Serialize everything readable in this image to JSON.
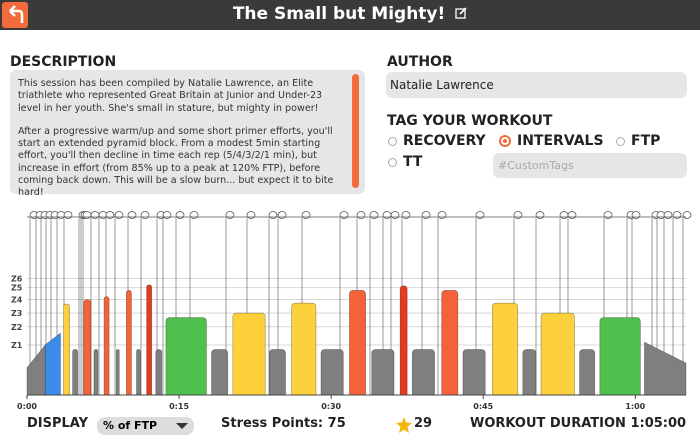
{
  "header": {
    "title": "The Small but Mighty!"
  },
  "description": {
    "label": "DESCRIPTION",
    "paragraphs": [
      "This session has been compiled by Natalie Lawrence, an Elite triathlete who represented Great Britain at Junior and Under-23 level in her youth. She's small in stature, but mighty in power!",
      "After a progressive warm/up and some short primer efforts, you'll start an extended pyramid block. From a modest 5min starting effort, you'll then decline in time each rep (5/4/3/2/1 min), but increase in effort (from 85% up to a peak at 120% FTP), before coming back down. This will be a slow burn... but expect it to bite hard!"
    ]
  },
  "author": {
    "label": "AUTHOR",
    "value": "Natalie Lawrence"
  },
  "tags": {
    "label": "TAG YOUR WORKOUT",
    "options": [
      {
        "label": "RECOVERY",
        "checked": false
      },
      {
        "label": "INTERVALS",
        "checked": true
      },
      {
        "label": "FTP",
        "checked": false
      },
      {
        "label": "TT",
        "checked": false
      }
    ],
    "custom_placeholder": "#CustomTags"
  },
  "workout": {
    "xlim": [
      0,
      65
    ],
    "ylim": [
      0,
      200
    ],
    "xticks": [
      {
        "value": 0,
        "label": "0:00"
      },
      {
        "value": 15,
        "label": "0:15"
      },
      {
        "value": 30,
        "label": "0:30"
      },
      {
        "value": 45,
        "label": "0:45"
      },
      {
        "value": 60,
        "label": "1:00"
      }
    ],
    "zones": [
      {
        "value": 55,
        "label": "Z1"
      },
      {
        "value": 75,
        "label": "Z2"
      },
      {
        "value": 90,
        "label": "Z3"
      },
      {
        "value": 105,
        "label": "Z4"
      },
      {
        "value": 118,
        "label": "Z5"
      },
      {
        "value": 128,
        "label": "Z6"
      }
    ],
    "blocks": [
      {
        "start": 0,
        "end": 1.8,
        "power": [
          30,
          55
        ],
        "color": "#7f7f7f"
      },
      {
        "start": 1.8,
        "end": 3.3,
        "power": [
          55,
          68
        ],
        "color": "#3b8bea"
      },
      {
        "start": 3.6,
        "end": 4.2,
        "power": [
          100
        ],
        "color": "#fdd13b"
      },
      {
        "start": 4.5,
        "end": 5.0,
        "power": [
          50
        ],
        "color": "#7f7f7f"
      },
      {
        "start": 5.6,
        "end": 6.3,
        "power": [
          105
        ],
        "color": "#f5623a"
      },
      {
        "start": 6.6,
        "end": 7.0,
        "power": [
          50
        ],
        "color": "#7f7f7f"
      },
      {
        "start": 7.6,
        "end": 8.1,
        "power": [
          108
        ],
        "color": "#f5623a"
      },
      {
        "start": 8.8,
        "end": 9.1,
        "power": [
          50
        ],
        "color": "#7f7f7f"
      },
      {
        "start": 9.8,
        "end": 10.3,
        "power": [
          115
        ],
        "color": "#f5623a"
      },
      {
        "start": 10.8,
        "end": 11.2,
        "power": [
          50
        ],
        "color": "#7f7f7f"
      },
      {
        "start": 11.8,
        "end": 12.3,
        "power": [
          121
        ],
        "color": "#e53a1e"
      },
      {
        "start": 12.7,
        "end": 13.3,
        "power": [
          50
        ],
        "color": "#7f7f7f"
      },
      {
        "start": 13.7,
        "end": 17.7,
        "power": [
          85
        ],
        "color": "#4fbf4e"
      },
      {
        "start": 18.2,
        "end": 19.8,
        "power": [
          50
        ],
        "color": "#7f7f7f"
      },
      {
        "start": 20.3,
        "end": 23.5,
        "power": [
          90
        ],
        "color": "#fdd13b"
      },
      {
        "start": 23.9,
        "end": 25.5,
        "power": [
          50
        ],
        "color": "#7f7f7f"
      },
      {
        "start": 26.1,
        "end": 28.5,
        "power": [
          101
        ],
        "color": "#fdd13b"
      },
      {
        "start": 29.0,
        "end": 31.2,
        "power": [
          50
        ],
        "color": "#7f7f7f"
      },
      {
        "start": 31.8,
        "end": 33.4,
        "power": [
          115
        ],
        "color": "#f5623a"
      },
      {
        "start": 34.0,
        "end": 36.2,
        "power": [
          50
        ],
        "color": "#7f7f7f"
      },
      {
        "start": 36.8,
        "end": 37.5,
        "power": [
          120
        ],
        "color": "#e53a1e"
      },
      {
        "start": 38.0,
        "end": 40.2,
        "power": [
          50
        ],
        "color": "#7f7f7f"
      },
      {
        "start": 40.9,
        "end": 42.5,
        "power": [
          115
        ],
        "color": "#f5623a"
      },
      {
        "start": 43.0,
        "end": 45.2,
        "power": [
          50
        ],
        "color": "#7f7f7f"
      },
      {
        "start": 45.9,
        "end": 48.4,
        "power": [
          101
        ],
        "color": "#fdd13b"
      },
      {
        "start": 48.9,
        "end": 50.2,
        "power": [
          50
        ],
        "color": "#7f7f7f"
      },
      {
        "start": 50.7,
        "end": 54.0,
        "power": [
          90
        ],
        "color": "#fdd13b"
      },
      {
        "start": 54.5,
        "end": 56.0,
        "power": [
          50
        ],
        "color": "#7f7f7f"
      },
      {
        "start": 56.5,
        "end": 60.5,
        "power": [
          85
        ],
        "color": "#4fbf4e"
      },
      {
        "start": 60.9,
        "end": 65,
        "power": [
          58,
          35
        ],
        "color": "#7f7f7f"
      }
    ]
  },
  "footer": {
    "display_label": "DISPLAY",
    "display_mode": "% of FTP",
    "stress_points": "Stress Points: 75",
    "rating": 29,
    "duration": "WORKOUT DURATION 1:05:00"
  }
}
